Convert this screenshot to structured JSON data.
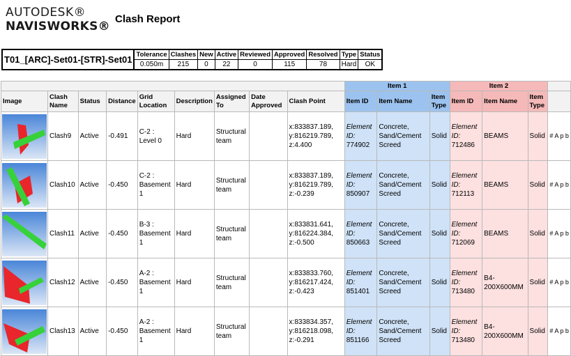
{
  "logo": {
    "line1": "AUTODESK®",
    "line2": "NAVISWORKS®"
  },
  "report_title": "Clash Report",
  "summary": {
    "test_name": "T01_[ARC]-Set01-[STR]-Set01",
    "headers": [
      "Tolerance",
      "Clashes",
      "New",
      "Active",
      "Reviewed",
      "Approved",
      "Resolved",
      "Type",
      "Status"
    ],
    "values": [
      "0.050m",
      "215",
      "0",
      "22",
      "0",
      "115",
      "78",
      "Hard",
      "OK"
    ]
  },
  "table": {
    "group_item1": "Item 1",
    "group_item2": "Item 2",
    "headers": {
      "image": "Image",
      "clash_name": "Clash Name",
      "status": "Status",
      "distance": "Distance",
      "grid_location": "Grid Location",
      "description": "Description",
      "assigned_to": "Assigned To",
      "date_approved": "Date Approved",
      "clash_point": "Clash Point",
      "item1_id": "Item ID",
      "item1_name": "Item Name",
      "item1_type": "Item Type",
      "item2_id": "Item ID",
      "item2_name": "Item Name",
      "item2_type": "Item Type"
    },
    "rows": [
      {
        "name": "Clash9",
        "status": "Active",
        "distance": "-0.491",
        "grid": "C-2 : Level 0",
        "description": "Hard",
        "assigned": "Structural team",
        "point": "x:833837.189, y:816219.789, z:4.400",
        "i1_label": "Element ID:",
        "i1_num": "774902",
        "i1_name": "Concrete, Sand/Cement Screed",
        "i1_type": "Solid",
        "i2_label": "Element ID:",
        "i2_num": "712486",
        "i2_name": "BEAMS",
        "i2_type": "Solid",
        "tail": "# A p b"
      },
      {
        "name": "Clash10",
        "status": "Active",
        "distance": "-0.450",
        "grid": "C-2 : Basement 1",
        "description": "Hard",
        "assigned": "Structural team",
        "point": "x:833837.189, y:816219.789, z:-0.239",
        "i1_label": "Element ID:",
        "i1_num": "850907",
        "i1_name": "Concrete, Sand/Cement Screed",
        "i1_type": "Solid",
        "i2_label": "Element ID:",
        "i2_num": "712113",
        "i2_name": "BEAMS",
        "i2_type": "Solid",
        "tail": "# A p b"
      },
      {
        "name": "Clash11",
        "status": "Active",
        "distance": "-0.450",
        "grid": "B-3 : Basement 1",
        "description": "Hard",
        "assigned": "Structural team",
        "point": "x:833831.641, y:816224.384, z:-0.500",
        "i1_label": "Element ID:",
        "i1_num": "850663",
        "i1_name": "Concrete, Sand/Cement Screed",
        "i1_type": "Solid",
        "i2_label": "Element ID:",
        "i2_num": "712069",
        "i2_name": "BEAMS",
        "i2_type": "Solid",
        "tail": "# A p b"
      },
      {
        "name": "Clash12",
        "status": "Active",
        "distance": "-0.450",
        "grid": "A-2 : Basement 1",
        "description": "Hard",
        "assigned": "Structural team",
        "point": "x:833833.760, y:816217.424, z:-0.423",
        "i1_label": "Element ID:",
        "i1_num": "851401",
        "i1_name": "Concrete, Sand/Cement Screed",
        "i1_type": "Solid",
        "i2_label": "Element ID:",
        "i2_num": "713480",
        "i2_name": "B4-200X600MM",
        "i2_type": "Solid",
        "tail": "# A p b"
      },
      {
        "name": "Clash13",
        "status": "Active",
        "distance": "-0.450",
        "grid": "A-2 : Basement 1",
        "description": "Hard",
        "assigned": "Structural team",
        "point": "x:833834.357, y:816218.098, z:-0.291",
        "i1_label": "Element ID:",
        "i1_num": "851166",
        "i1_name": "Concrete, Sand/Cement Screed",
        "i1_type": "Solid",
        "i2_label": "Element ID:",
        "i2_num": "713480",
        "i2_name": "B4-200X600MM",
        "i2_type": "Solid",
        "tail": "# A p b"
      }
    ]
  },
  "colors": {
    "item1_header": "#9cc3ef",
    "item1_cell": "#cfe2f7",
    "item2_header": "#f6b9b9",
    "item2_cell": "#fde0e0",
    "clash_red": "#e8262b",
    "clash_green": "#37d13a"
  }
}
